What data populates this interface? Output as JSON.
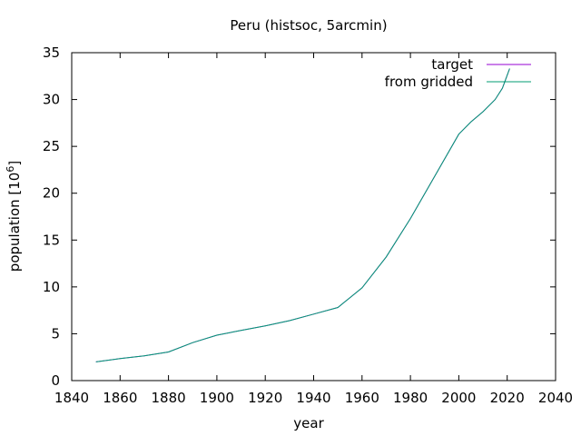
{
  "chart_data": {
    "type": "line",
    "title": "Peru (histsoc, 5arcmin)",
    "xlabel": "year",
    "ylabel": "population [10",
    "ylabel_sup": "6",
    "ylabel_close": "]",
    "xlim": [
      1840,
      2040
    ],
    "ylim": [
      0,
      35
    ],
    "xticks": [
      1840,
      1860,
      1880,
      1900,
      1920,
      1940,
      1960,
      1980,
      2000,
      2020,
      2040
    ],
    "yticks": [
      0,
      5,
      10,
      15,
      20,
      25,
      30,
      35
    ],
    "grid": false,
    "legend_position": "top-right",
    "series": [
      {
        "name": "target",
        "color": "#9400d3",
        "x": [
          1850,
          1860,
          1870,
          1880,
          1890,
          1900,
          1910,
          1920,
          1930,
          1940,
          1950,
          1960,
          1970,
          1980,
          1990,
          2000,
          2005,
          2010,
          2015,
          2018,
          2020,
          2021
        ],
        "y": [
          2.0,
          2.35,
          2.65,
          3.05,
          4.05,
          4.85,
          5.35,
          5.85,
          6.4,
          7.1,
          7.8,
          9.9,
          13.2,
          17.3,
          21.8,
          26.3,
          27.6,
          28.7,
          30.0,
          31.2,
          32.6,
          33.3
        ]
      },
      {
        "name": "from gridded",
        "color": "#009e73",
        "x": [
          1850,
          1860,
          1870,
          1880,
          1890,
          1900,
          1910,
          1920,
          1930,
          1940,
          1950,
          1960,
          1970,
          1980,
          1990,
          2000,
          2005,
          2010,
          2015,
          2018,
          2020,
          2021
        ],
        "y": [
          2.0,
          2.35,
          2.65,
          3.05,
          4.05,
          4.85,
          5.35,
          5.85,
          6.4,
          7.1,
          7.8,
          9.9,
          13.2,
          17.3,
          21.8,
          26.3,
          27.6,
          28.7,
          30.0,
          31.2,
          32.6,
          33.3
        ]
      }
    ]
  }
}
